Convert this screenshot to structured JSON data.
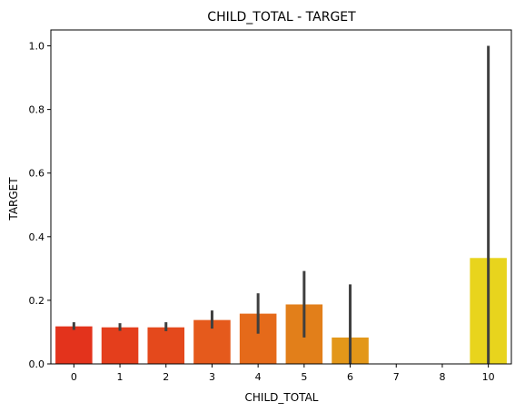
{
  "chart_data": {
    "type": "bar",
    "title": "CHILD_TOTAL - TARGET",
    "xlabel": "CHILD_TOTAL",
    "ylabel": "TARGET",
    "categories": [
      "0",
      "1",
      "2",
      "3",
      "4",
      "5",
      "6",
      "7",
      "8",
      "10"
    ],
    "values": [
      0.118,
      0.115,
      0.115,
      0.138,
      0.158,
      0.187,
      0.083,
      0.0,
      0.0,
      0.333
    ],
    "error_low": [
      0.107,
      0.104,
      0.103,
      0.111,
      0.095,
      0.083,
      0.0,
      0.0,
      0.0,
      0.0
    ],
    "error_high": [
      0.131,
      0.128,
      0.131,
      0.168,
      0.222,
      0.292,
      0.25,
      0.0,
      0.0,
      1.0
    ],
    "colors": [
      "#e3331c",
      "#e43e1c",
      "#e4491c",
      "#e55a1c",
      "#e56a1a",
      "#e27f1a",
      "#e39719",
      "#e3a91a",
      "#e4bd1a",
      "#e8d41d"
    ],
    "ylim": [
      0,
      1.05
    ],
    "yticks": [
      "0.0",
      "0.2",
      "0.4",
      "0.6",
      "0.8",
      "1.0"
    ],
    "ytick_values": [
      0.0,
      0.2,
      0.4,
      0.6,
      0.8,
      1.0
    ],
    "grid": false,
    "legend": "none",
    "errorbar_color": "#3f3f3f"
  }
}
